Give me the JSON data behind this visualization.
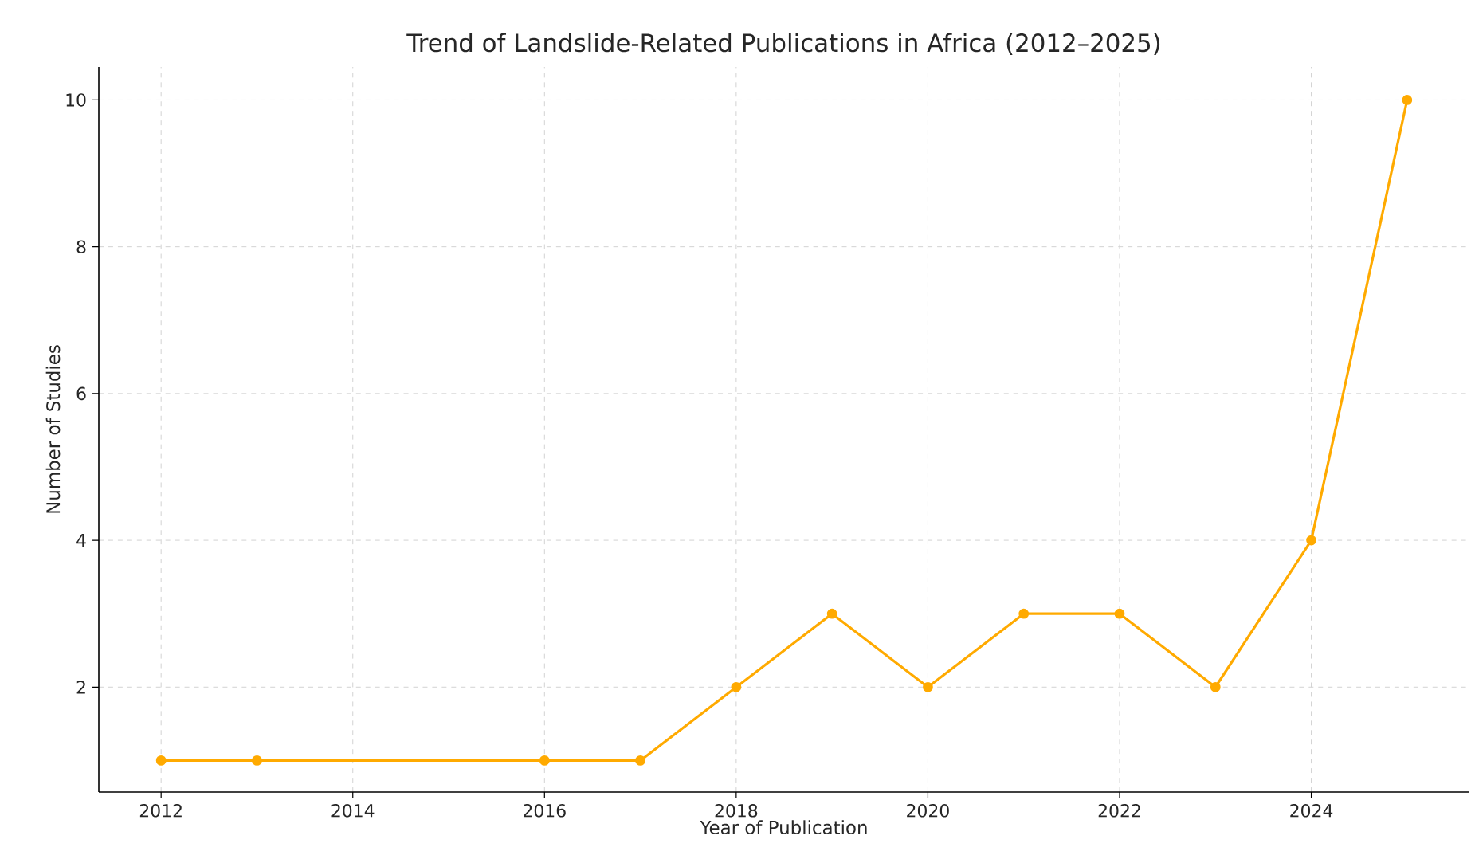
{
  "chart_data": {
    "type": "line",
    "title": "Trend of Landslide-Related Publications in Africa (2012–2025)",
    "xlabel": "Year of Publication",
    "ylabel": "Number of Studies",
    "x": [
      2012,
      2013,
      2016,
      2017,
      2018,
      2019,
      2020,
      2021,
      2022,
      2023,
      2024,
      2025
    ],
    "series": [
      {
        "color": "#ffaa00",
        "values": [
          1,
          1,
          1,
          1,
          2,
          3,
          2,
          3,
          3,
          2,
          4,
          10
        ]
      }
    ],
    "xlim": [
      2011.35,
      2025.65
    ],
    "ylim": [
      0.57,
      10.45
    ],
    "xticks": [
      2012,
      2014,
      2016,
      2018,
      2020,
      2022,
      2024
    ],
    "yticks": [
      2,
      4,
      6,
      8,
      10
    ],
    "grid": true,
    "marker": "circle",
    "line_style": "solid"
  }
}
